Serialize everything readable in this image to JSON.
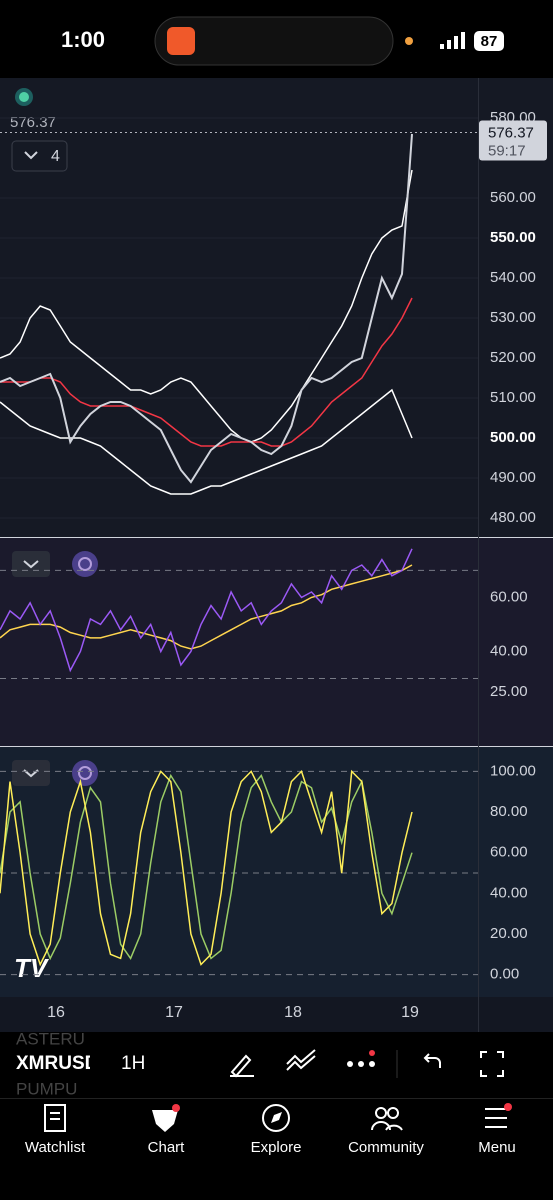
{
  "status": {
    "time": "1:00",
    "battery": "87"
  },
  "chart_data": [
    {
      "type": "line",
      "last_price": 576.37,
      "countdown": "59:17",
      "indicator_count": "4",
      "ylim": [
        475,
        590
      ],
      "yticks": [
        {
          "value": 580,
          "label": "580.00"
        },
        {
          "value": 560,
          "label": "560.00"
        },
        {
          "value": 550,
          "label": "550.00"
        },
        {
          "value": 540,
          "label": "540.00"
        },
        {
          "value": 530,
          "label": "530.00"
        },
        {
          "value": 520,
          "label": "520.00"
        },
        {
          "value": 510,
          "label": "510.00"
        },
        {
          "value": 500,
          "label": "500.00"
        },
        {
          "value": 490,
          "label": "490.00"
        },
        {
          "value": 480,
          "label": "480.00"
        }
      ],
      "series": [
        {
          "color": "#ffffff",
          "values": [
            520,
            521,
            524,
            530,
            533,
            532,
            528,
            524,
            522,
            520,
            518,
            516,
            514,
            512,
            512,
            511,
            512,
            514,
            515,
            514,
            511,
            508,
            505,
            502,
            500,
            499,
            500,
            502,
            505,
            508,
            512,
            516,
            520,
            524,
            528,
            533,
            540,
            546,
            550,
            552,
            553,
            567
          ]
        },
        {
          "color": "#ffffff",
          "values": [
            509,
            507,
            505,
            503,
            502,
            501,
            500,
            500,
            500,
            499,
            498,
            496,
            494,
            492,
            490,
            488,
            487,
            486,
            486,
            486,
            487,
            488,
            488,
            489,
            490,
            491,
            492,
            493,
            494,
            495,
            496,
            497,
            498,
            500,
            502,
            504,
            506,
            508,
            510,
            512,
            506,
            500
          ]
        },
        {
          "color": "#f23645",
          "values": [
            514,
            514,
            514,
            514,
            515,
            515,
            514,
            511,
            509,
            508,
            508,
            508,
            508,
            508,
            507,
            506,
            505,
            503,
            501,
            499,
            498,
            498,
            498,
            499,
            499,
            499,
            499,
            498,
            498,
            499,
            501,
            503,
            506,
            509,
            511,
            513,
            515,
            519,
            523,
            526,
            530,
            535
          ]
        },
        {
          "color": "#d1d4dc",
          "values": [
            514,
            515,
            513,
            514,
            515,
            516,
            510,
            499,
            503,
            506,
            508,
            509,
            509,
            508,
            506,
            504,
            502,
            497,
            492,
            489,
            493,
            497,
            499,
            501,
            500,
            499,
            497,
            496,
            498,
            503,
            512,
            515,
            514,
            515,
            517,
            519,
            520,
            530,
            540,
            535,
            541,
            576
          ]
        }
      ]
    },
    {
      "type": "line",
      "ylim": [
        5,
        82
      ],
      "yticks": [
        {
          "value": 60,
          "label": "60.00"
        },
        {
          "value": 40,
          "label": "40.00"
        },
        {
          "value": 25,
          "label": "25.00"
        }
      ],
      "bands": [
        70,
        30
      ],
      "series": [
        {
          "color": "#ffd54f",
          "values": [
            45,
            48,
            49,
            50,
            50,
            50,
            49,
            47,
            46,
            45,
            45,
            46,
            47,
            48,
            47,
            46,
            45,
            44,
            42,
            41,
            42,
            44,
            46,
            48,
            50,
            52,
            53,
            54,
            55,
            57,
            58,
            60,
            61,
            63,
            64,
            65,
            66,
            67,
            68,
            69,
            70,
            72
          ]
        },
        {
          "color": "#9b59f5",
          "values": [
            48,
            55,
            52,
            58,
            50,
            55,
            45,
            33,
            40,
            52,
            50,
            55,
            48,
            53,
            45,
            50,
            40,
            47,
            35,
            40,
            50,
            57,
            52,
            62,
            55,
            58,
            50,
            55,
            58,
            65,
            60,
            62,
            58,
            68,
            63,
            70,
            72,
            68,
            74,
            68,
            70,
            78
          ]
        }
      ]
    },
    {
      "type": "line",
      "ylim": [
        -11,
        112
      ],
      "yticks": [
        {
          "value": 100,
          "label": "100.00"
        },
        {
          "value": 80,
          "label": "80.00"
        },
        {
          "value": 60,
          "label": "60.00"
        },
        {
          "value": 40,
          "label": "40.00"
        },
        {
          "value": 20,
          "label": "20.00"
        },
        {
          "value": 0,
          "label": "0.00"
        }
      ],
      "bands": [
        100,
        50,
        0
      ],
      "series": [
        {
          "color": "#9ccc65",
          "values": [
            50,
            80,
            85,
            50,
            20,
            8,
            18,
            45,
            75,
            92,
            85,
            45,
            15,
            8,
            20,
            55,
            85,
            98,
            90,
            55,
            20,
            8,
            12,
            40,
            75,
            92,
            98,
            85,
            75,
            80,
            95,
            92,
            75,
            82,
            65,
            85,
            95,
            70,
            40,
            30,
            45,
            60
          ]
        },
        {
          "color": "#ffee58",
          "values": [
            40,
            95,
            60,
            20,
            5,
            15,
            50,
            80,
            95,
            70,
            30,
            10,
            8,
            30,
            70,
            90,
            100,
            95,
            60,
            20,
            5,
            10,
            40,
            80,
            95,
            100,
            90,
            70,
            75,
            95,
            100,
            85,
            70,
            90,
            50,
            100,
            95,
            60,
            30,
            35,
            60,
            80
          ]
        }
      ]
    }
  ],
  "time_axis": [
    "16",
    "17",
    "18",
    "19"
  ],
  "toolbar": {
    "symbol": "XMRUSD",
    "interval": "1H",
    "ghost": [
      "ASTERU",
      "PUMPU"
    ]
  },
  "nav": [
    "Watchlist",
    "Chart",
    "Explore",
    "Community",
    "Menu"
  ]
}
